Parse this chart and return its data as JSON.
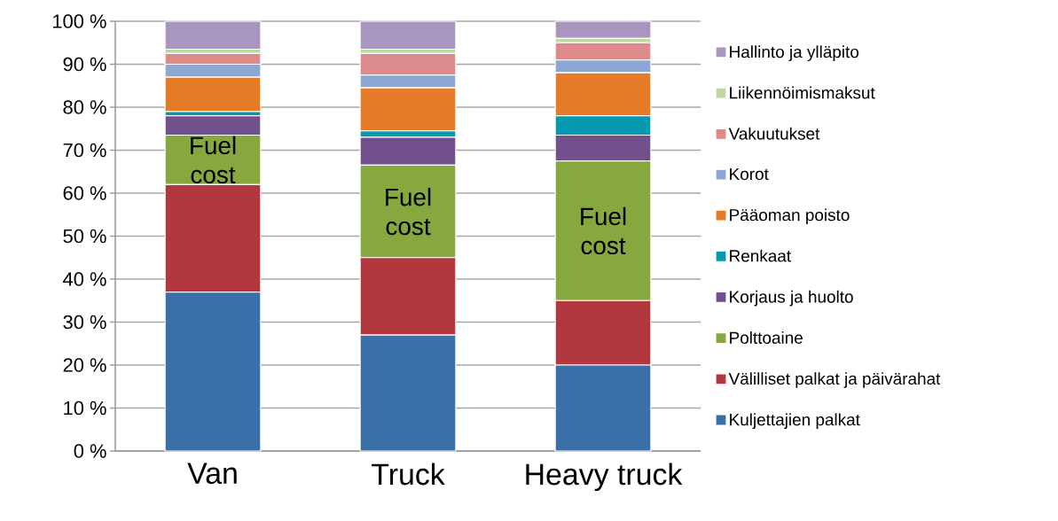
{
  "chart_data": {
    "type": "bar",
    "stacked": true,
    "grid": "y",
    "legend": "right",
    "categories": [
      "Van",
      "Truck",
      "Heavy truck"
    ],
    "ylim": [
      0,
      100
    ],
    "yticks": [
      {
        "value": 0,
        "label": "0 %"
      },
      {
        "value": 10,
        "label": "10 %"
      },
      {
        "value": 20,
        "label": "20 %"
      },
      {
        "value": 30,
        "label": "30 %"
      },
      {
        "value": 40,
        "label": "40 %"
      },
      {
        "value": 50,
        "label": "50 %"
      },
      {
        "value": 60,
        "label": "60 %"
      },
      {
        "value": 70,
        "label": "70 %"
      },
      {
        "value": 80,
        "label": "80 %"
      },
      {
        "value": 90,
        "label": "90 %"
      },
      {
        "value": 100,
        "label": "100 %"
      }
    ],
    "series": [
      {
        "name": "Kuljettajien palkat",
        "color": "#3a70a8",
        "values": [
          37,
          27,
          20
        ]
      },
      {
        "name": "Välilliset palkat ja päivärahat",
        "color": "#b3373f",
        "values": [
          25,
          18,
          15
        ]
      },
      {
        "name": "Polttoaine",
        "color": "#86a83e",
        "values": [
          11.5,
          21.5,
          32.5
        ]
      },
      {
        "name": "Korjaus ja huolto",
        "color": "#71508c",
        "values": [
          4.5,
          6.5,
          6
        ]
      },
      {
        "name": "Renkaat",
        "color": "#0598b1",
        "values": [
          1,
          1.5,
          4.5
        ]
      },
      {
        "name": "Pääoman poisto",
        "color": "#e57b27",
        "values": [
          8,
          10,
          10
        ]
      },
      {
        "name": "Korot",
        "color": "#8aa8d3",
        "values": [
          3,
          3,
          3
        ]
      },
      {
        "name": "Vakuutukset",
        "color": "#dc8a8b",
        "values": [
          2.5,
          5,
          4
        ]
      },
      {
        "name": "Liikennöimismaksut",
        "color": "#bcd9a0",
        "values": [
          1,
          1,
          1
        ]
      },
      {
        "name": "Hallinto ja ylläpito",
        "color": "#a896c0",
        "values": [
          6.5,
          6.5,
          4
        ]
      }
    ],
    "annotations": [
      "Fuel cost",
      "Fuel cost",
      "Fuel cost"
    ]
  }
}
